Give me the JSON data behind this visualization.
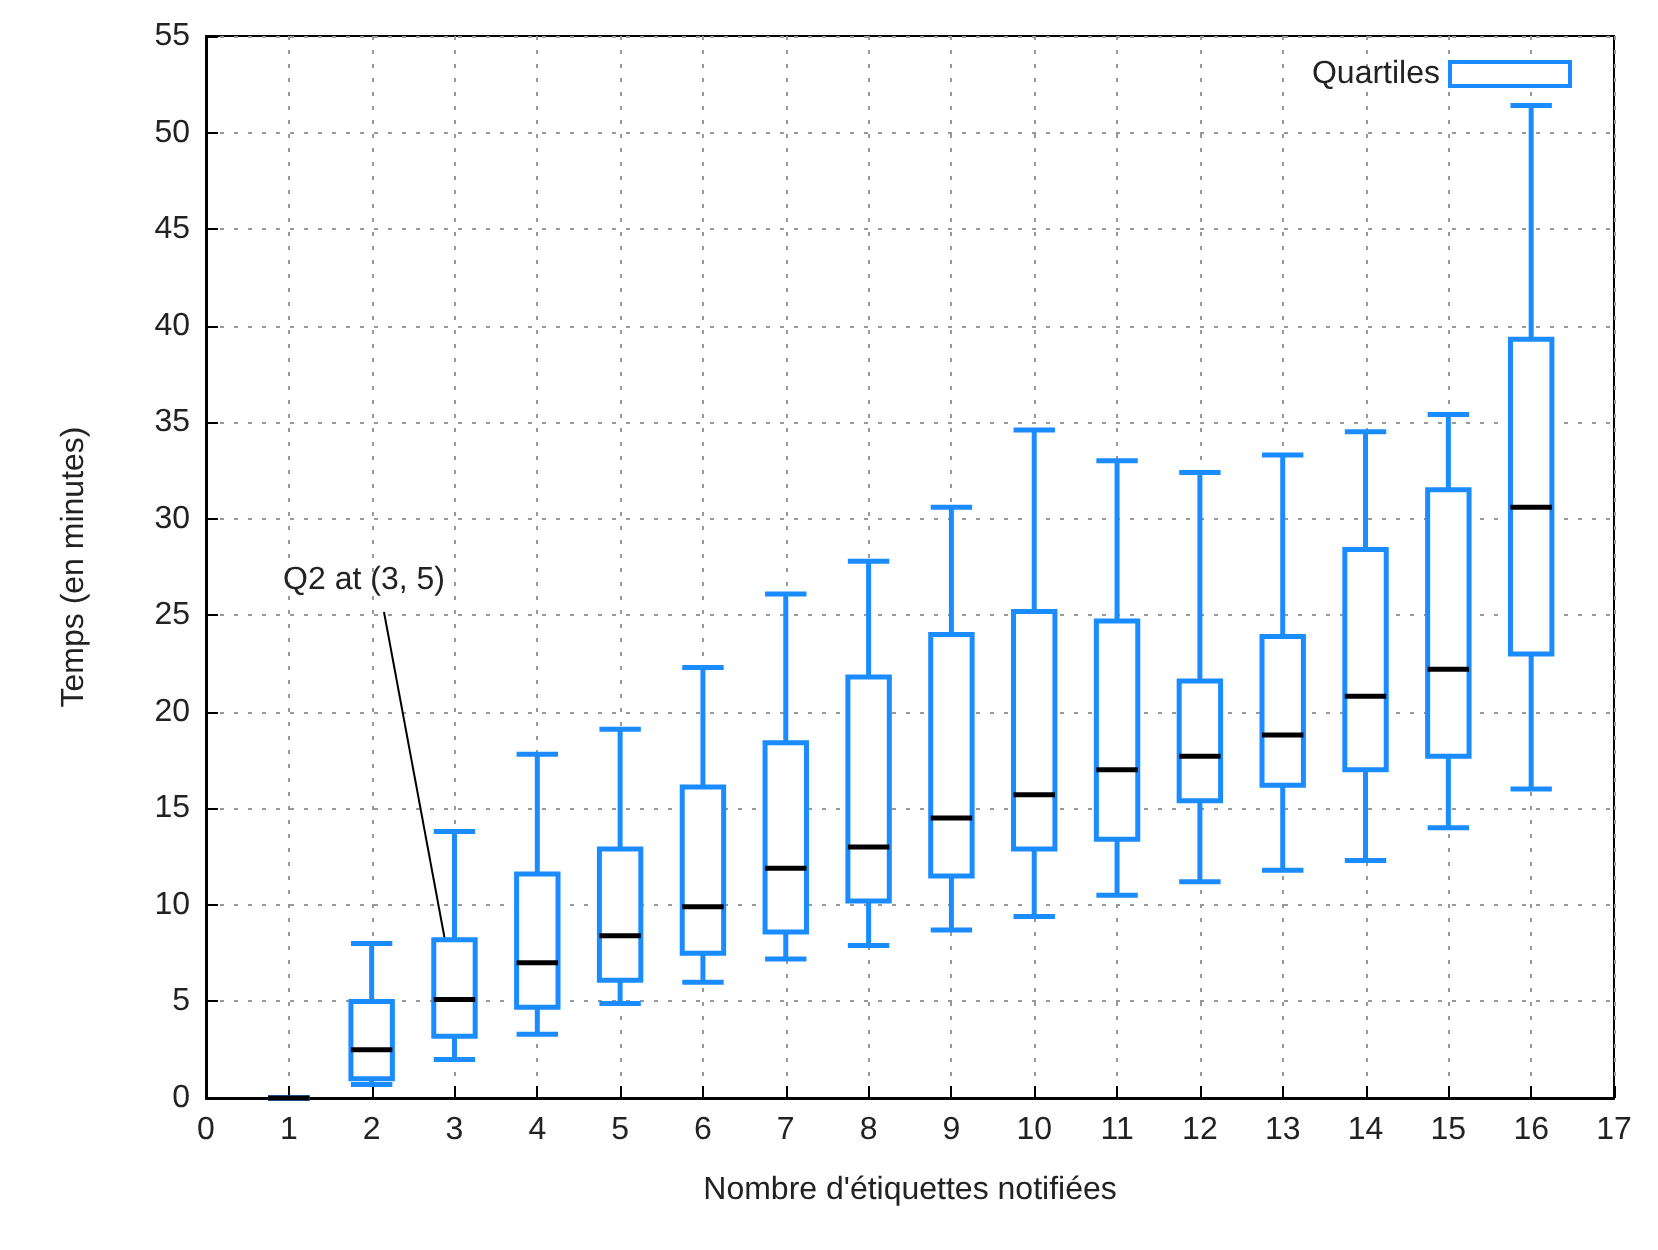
{
  "chart_data": {
    "type": "box",
    "xlabel": "Nombre d'étiquettes notifiées",
    "ylabel": "Temps (en minutes)",
    "x": [
      1,
      2,
      3,
      4,
      5,
      6,
      7,
      8,
      9,
      10,
      11,
      12,
      13,
      14,
      15,
      16
    ],
    "series": [
      {
        "name": "Quartiles",
        "color": "#1a8cff",
        "boxes": [
          {
            "low": 0,
            "q1": 0,
            "median": 0,
            "q3": 0,
            "high": 0
          },
          {
            "low": 0.7,
            "q1": 1.0,
            "median": 2.5,
            "q3": 5.0,
            "high": 8.0
          },
          {
            "low": 2.0,
            "q1": 3.2,
            "median": 5.1,
            "q3": 8.2,
            "high": 13.8
          },
          {
            "low": 3.3,
            "q1": 4.7,
            "median": 7.0,
            "q3": 11.6,
            "high": 17.8
          },
          {
            "low": 4.9,
            "q1": 6.1,
            "median": 8.4,
            "q3": 12.9,
            "high": 19.1
          },
          {
            "low": 6.0,
            "q1": 7.5,
            "median": 9.9,
            "q3": 16.1,
            "high": 22.3
          },
          {
            "low": 7.2,
            "q1": 8.6,
            "median": 11.9,
            "q3": 18.4,
            "high": 26.1
          },
          {
            "low": 7.9,
            "q1": 10.2,
            "median": 13.0,
            "q3": 21.8,
            "high": 27.8
          },
          {
            "low": 8.7,
            "q1": 11.5,
            "median": 14.5,
            "q3": 24.0,
            "high": 30.6
          },
          {
            "low": 9.4,
            "q1": 12.9,
            "median": 15.7,
            "q3": 25.2,
            "high": 34.6
          },
          {
            "low": 10.5,
            "q1": 13.4,
            "median": 17.0,
            "q3": 24.7,
            "high": 33.0
          },
          {
            "low": 11.2,
            "q1": 15.4,
            "median": 17.7,
            "q3": 21.6,
            "high": 32.4
          },
          {
            "low": 11.8,
            "q1": 16.2,
            "median": 18.8,
            "q3": 23.9,
            "high": 33.3
          },
          {
            "low": 12.3,
            "q1": 17.0,
            "median": 20.8,
            "q3": 28.4,
            "high": 34.5
          },
          {
            "low": 14.0,
            "q1": 17.7,
            "median": 22.2,
            "q3": 31.5,
            "high": 35.4
          },
          {
            "low": 16.0,
            "q1": 23.0,
            "median": 30.6,
            "q3": 39.3,
            "high": 51.4
          }
        ]
      }
    ],
    "xlim": [
      0,
      17
    ],
    "xticks": [
      0,
      1,
      2,
      3,
      4,
      5,
      6,
      7,
      8,
      9,
      10,
      11,
      12,
      13,
      14,
      15,
      16,
      17
    ],
    "ylim": [
      0,
      55
    ],
    "yticks": [
      0,
      5,
      10,
      15,
      20,
      25,
      30,
      35,
      40,
      45,
      50,
      55
    ],
    "annotations": [
      "Q2 at (3, 5)"
    ],
    "grid": true,
    "legend": "top right"
  }
}
